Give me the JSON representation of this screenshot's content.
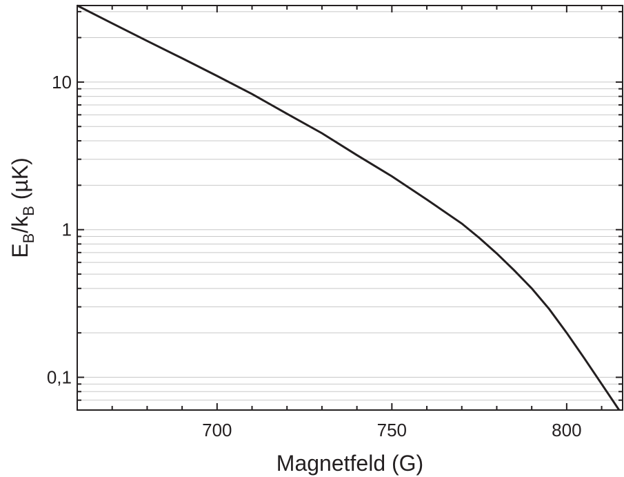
{
  "chart_data": {
    "type": "line",
    "title": "",
    "xlabel": "Magnetfeld (G)",
    "ylabel": {
      "parts": [
        "E",
        "B",
        "/k",
        "B",
        " (µK)"
      ]
    },
    "x_scale": "linear",
    "y_scale": "log",
    "xlim": [
      660,
      816
    ],
    "ylim": [
      0.06,
      33
    ],
    "x_ticks": [
      {
        "value": 700,
        "label": "700"
      },
      {
        "value": 750,
        "label": "750"
      },
      {
        "value": 800,
        "label": "800"
      }
    ],
    "y_ticks": [
      {
        "value": 0.1,
        "label": "0,1"
      },
      {
        "value": 1,
        "label": "1"
      },
      {
        "value": 10,
        "label": "10"
      }
    ],
    "horizontal_grid": "minor-and-major",
    "line_color": "#231f20",
    "series": [
      {
        "x": [
          660,
          670,
          680,
          690,
          700,
          710,
          720,
          730,
          740,
          750,
          760,
          770,
          775,
          780,
          785,
          790,
          795,
          800,
          805,
          810,
          815
        ],
        "y": [
          33,
          25,
          19,
          14.5,
          11,
          8.3,
          6.1,
          4.5,
          3.2,
          2.3,
          1.6,
          1.1,
          0.88,
          0.69,
          0.53,
          0.4,
          0.29,
          0.2,
          0.135,
          0.09,
          0.06
        ]
      }
    ]
  }
}
